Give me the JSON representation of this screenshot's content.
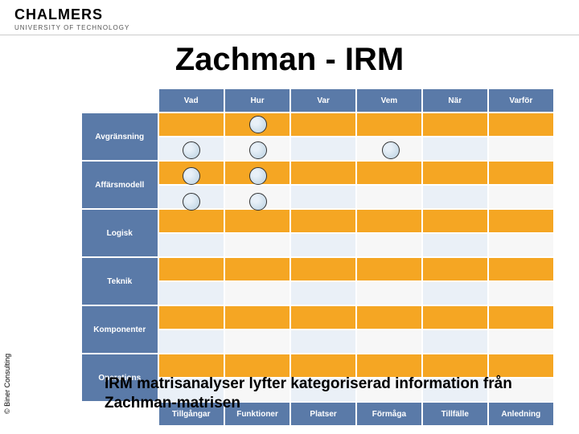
{
  "header": {
    "logo": "CHALMERS",
    "subtitle": "UNIVERSITY OF TECHNOLOGY"
  },
  "title": "Zachman - IRM",
  "copyright": "© Biner Consulting",
  "caption": "IRM matrisanalyser lyfter kategoriserad information från  Zachman-matrisen",
  "matrix": {
    "colHeaders": [
      "Vad",
      "Hur",
      "Var",
      "Vem",
      "När",
      "Varför"
    ],
    "rowHeaders": [
      "Avgränsning",
      "Affärsmodell",
      "Logisk",
      "Teknik",
      "Komponenter",
      "Operations"
    ],
    "footers": [
      "Tillgångar",
      "Funktioner",
      "Platser",
      "Förmåga",
      "Tillfälle",
      "Anledning"
    ],
    "circles": [
      {
        "row": 0,
        "col": 1
      },
      {
        "row": 1,
        "col": 0
      },
      {
        "row": 1,
        "col": 1
      },
      {
        "row": 1,
        "col": 3
      },
      {
        "row": 2,
        "col": 0
      },
      {
        "row": 2,
        "col": 1
      },
      {
        "row": 3,
        "col": 0
      },
      {
        "row": 3,
        "col": 1
      }
    ],
    "colors": {
      "headerBg": "#5a7aa8",
      "headerText": "#ffffff",
      "cellTop": "#f5a623",
      "cellBottomEven": "#eaf0f7",
      "cellBottomOdd": "#f7f7f7",
      "circleBorder": "#333333",
      "circleFillLight": "#e8f0f8",
      "circleFillDark": "#b8d0e0"
    },
    "fontsize": {
      "title": 40,
      "tableHeader": 10,
      "caption": 19
    }
  }
}
